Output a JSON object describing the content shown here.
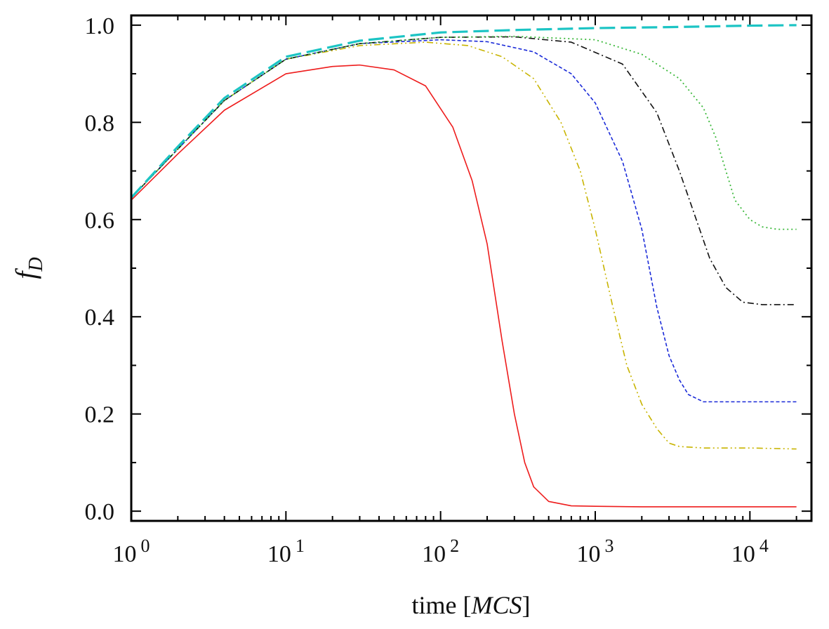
{
  "chart_data": {
    "type": "line",
    "xscale": "log",
    "xlabel_prefix": "time [",
    "xlabel_italic": "MCS",
    "xlabel_suffix": "]",
    "ylabel_main": "f",
    "ylabel_sub": "D",
    "xlim": [
      1,
      25000
    ],
    "ylim": [
      -0.02,
      1.02
    ],
    "x_ticks": [
      {
        "value": 1,
        "base": "10",
        "exp": "0"
      },
      {
        "value": 10,
        "base": "10",
        "exp": "1"
      },
      {
        "value": 100,
        "base": "10",
        "exp": "2"
      },
      {
        "value": 1000,
        "base": "10",
        "exp": "3"
      },
      {
        "value": 10000,
        "base": "10",
        "exp": "4"
      }
    ],
    "y_ticks": [
      {
        "value": 0.0,
        "label": "0.0"
      },
      {
        "value": 0.2,
        "label": "0.2"
      },
      {
        "value": 0.4,
        "label": "0.4"
      },
      {
        "value": 0.6,
        "label": "0.6"
      },
      {
        "value": 0.8,
        "label": "0.8"
      },
      {
        "value": 1.0,
        "label": "1.0"
      }
    ],
    "series": [
      {
        "name": "red-solid",
        "color": "#ee1c1c",
        "dash": "",
        "width": 1.6,
        "x": [
          1,
          2,
          4,
          10,
          20,
          30,
          50,
          80,
          120,
          160,
          200,
          250,
          300,
          350,
          400,
          500,
          700,
          1000,
          2000,
          5000,
          10000,
          20000
        ],
        "y": [
          0.64,
          0.735,
          0.825,
          0.9,
          0.915,
          0.918,
          0.908,
          0.875,
          0.79,
          0.68,
          0.55,
          0.35,
          0.2,
          0.1,
          0.05,
          0.02,
          0.011,
          0.01,
          0.009,
          0.009,
          0.009,
          0.009
        ]
      },
      {
        "name": "yellow-dashdotdot",
        "color": "#c8b400",
        "dash": "9,4,2,4,2,4",
        "width": 1.6,
        "x": [
          1,
          2,
          4,
          10,
          30,
          80,
          150,
          250,
          400,
          600,
          800,
          1000,
          1300,
          1600,
          2000,
          2500,
          3000,
          3500,
          5000,
          10000,
          20000
        ],
        "y": [
          0.645,
          0.745,
          0.845,
          0.93,
          0.958,
          0.965,
          0.958,
          0.935,
          0.89,
          0.8,
          0.7,
          0.58,
          0.42,
          0.3,
          0.22,
          0.17,
          0.14,
          0.133,
          0.13,
          0.13,
          0.128
        ]
      },
      {
        "name": "blue-dashed",
        "color": "#1a2ad8",
        "dash": "5,3",
        "width": 1.6,
        "x": [
          1,
          2,
          4,
          10,
          30,
          100,
          200,
          400,
          700,
          1000,
          1500,
          2000,
          2500,
          3000,
          3500,
          4000,
          5000,
          10000,
          20000
        ],
        "y": [
          0.645,
          0.745,
          0.845,
          0.93,
          0.962,
          0.97,
          0.966,
          0.945,
          0.9,
          0.84,
          0.72,
          0.58,
          0.42,
          0.32,
          0.27,
          0.24,
          0.225,
          0.225,
          0.225
        ]
      },
      {
        "name": "black-dashdot",
        "color": "#111111",
        "dash": "9,4,2,4",
        "width": 1.6,
        "x": [
          1,
          2,
          4,
          10,
          30,
          100,
          300,
          700,
          1500,
          2500,
          3500,
          4500,
          5500,
          7000,
          9000,
          12000,
          20000
        ],
        "y": [
          0.645,
          0.745,
          0.845,
          0.93,
          0.962,
          0.975,
          0.976,
          0.965,
          0.92,
          0.82,
          0.7,
          0.6,
          0.52,
          0.46,
          0.43,
          0.425,
          0.425
        ]
      },
      {
        "name": "green-dotted",
        "color": "#3ab83a",
        "dash": "2,4",
        "width": 1.8,
        "x": [
          1,
          2,
          4,
          10,
          30,
          100,
          300,
          1000,
          2000,
          3500,
          5000,
          6000,
          7000,
          8000,
          10000,
          12000,
          15000,
          20000
        ],
        "y": [
          0.645,
          0.745,
          0.845,
          0.93,
          0.962,
          0.975,
          0.977,
          0.97,
          0.94,
          0.89,
          0.83,
          0.77,
          0.7,
          0.64,
          0.6,
          0.585,
          0.58,
          0.58
        ]
      },
      {
        "name": "cyan-longdash",
        "color": "#1cc4c4",
        "dash": "22,8",
        "width": 3.2,
        "x": [
          1,
          2,
          4,
          10,
          30,
          100,
          300,
          1000,
          3000,
          10000,
          20000
        ],
        "y": [
          0.645,
          0.75,
          0.85,
          0.935,
          0.968,
          0.985,
          0.99,
          0.994,
          0.996,
          0.999,
          1.0
        ]
      }
    ]
  }
}
